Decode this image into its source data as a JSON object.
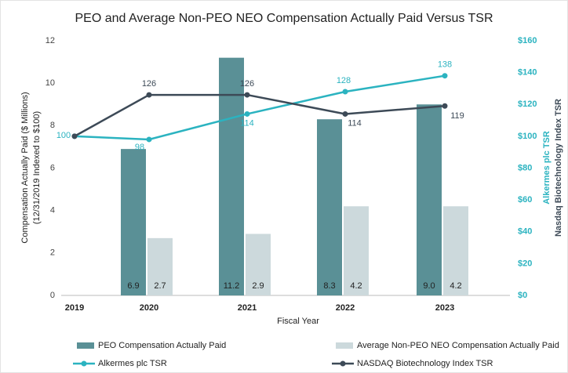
{
  "chart_data": {
    "type": "bar_line",
    "title": "PEO and Average Non-PEO NEO Compensation Actually Paid Versus TSR",
    "x_label": "Fiscal Year",
    "y_label": [
      "Compensation Actually Paid ($ Millions)",
      "(12/31/2019 Indexed to $100)"
    ],
    "y2_label": [
      "Alkermes plc TSR",
      "Nasdaq Biotechnology Index TSR"
    ],
    "categories": [
      "2019",
      "2020",
      "2021",
      "2022",
      "2023"
    ],
    "ylim": [
      0,
      12
    ],
    "yticks": [
      0,
      2,
      4,
      6,
      8,
      10,
      12
    ],
    "y2lim": [
      0,
      160
    ],
    "y2ticks": [
      {
        "value": 0,
        "label": "$0"
      },
      {
        "value": 20,
        "label": "$20"
      },
      {
        "value": 40,
        "label": "$40"
      },
      {
        "value": 60,
        "label": "$60"
      },
      {
        "value": 80,
        "label": "$80"
      },
      {
        "value": 100,
        "label": "$100"
      },
      {
        "value": 120,
        "label": "$120"
      },
      {
        "value": 140,
        "label": "$140"
      },
      {
        "value": 160,
        "label": "$160"
      }
    ],
    "series": [
      {
        "name": "PEO Compensation Actually Paid",
        "type": "bar",
        "color": "#5a9096",
        "values": [
          null,
          6.9,
          11.2,
          8.3,
          9.0
        ],
        "value_labels": [
          null,
          "6.9",
          "11.2",
          "8.3",
          "9.0"
        ]
      },
      {
        "name": "Average Non-PEO NEO Compensation Actually Paid",
        "type": "bar",
        "color": "#ccd9dc",
        "values": [
          null,
          2.7,
          2.9,
          4.2,
          4.2
        ]
      },
      {
        "name": "Alkermes plc TSR",
        "type": "line",
        "axis": "y2",
        "color": "#2bb3c0",
        "values": [
          100,
          98,
          114,
          128,
          138
        ]
      },
      {
        "name": "NASDAQ Biotechnology Index TSR",
        "type": "line",
        "axis": "y2",
        "color": "#3d4a57",
        "values": [
          100,
          126,
          126,
          114,
          119
        ],
        "value_labels": [
          null,
          "126",
          "126",
          "114",
          "119"
        ]
      }
    ]
  }
}
